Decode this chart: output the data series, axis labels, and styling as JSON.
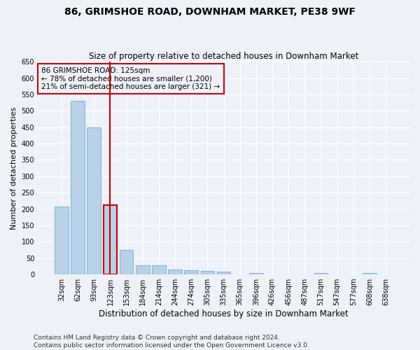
{
  "title": "86, GRIMSHOE ROAD, DOWNHAM MARKET, PE38 9WF",
  "subtitle": "Size of property relative to detached houses in Downham Market",
  "xlabel": "Distribution of detached houses by size in Downham Market",
  "ylabel": "Number of detached properties",
  "categories": [
    "32sqm",
    "62sqm",
    "93sqm",
    "123sqm",
    "153sqm",
    "184sqm",
    "214sqm",
    "244sqm",
    "274sqm",
    "305sqm",
    "335sqm",
    "365sqm",
    "396sqm",
    "426sqm",
    "456sqm",
    "487sqm",
    "517sqm",
    "547sqm",
    "577sqm",
    "608sqm",
    "638sqm"
  ],
  "values": [
    207,
    530,
    450,
    212,
    75,
    28,
    28,
    15,
    12,
    10,
    8,
    0,
    5,
    0,
    0,
    0,
    5,
    0,
    0,
    5,
    0
  ],
  "bar_color": "#b8d0e8",
  "bar_edge_color": "#7aaad0",
  "highlight_bar_index": 3,
  "highlight_bar_edge_color": "#cc0000",
  "vline_color": "#cc0000",
  "annotation_line1": "86 GRIMSHOE ROAD: 125sqm",
  "annotation_line2": "← 78% of detached houses are smaller (1,200)",
  "annotation_line3": "21% of semi-detached houses are larger (321) →",
  "annotation_box_color": "#cc0000",
  "ylim": [
    0,
    650
  ],
  "yticks": [
    0,
    50,
    100,
    150,
    200,
    250,
    300,
    350,
    400,
    450,
    500,
    550,
    600,
    650
  ],
  "footer": "Contains HM Land Registry data © Crown copyright and database right 2024.\nContains public sector information licensed under the Open Government Licence v3.0.",
  "bg_color": "#eef2f8",
  "grid_color": "#ffffff",
  "title_fontsize": 10,
  "subtitle_fontsize": 8.5,
  "tick_fontsize": 7,
  "ylabel_fontsize": 8,
  "xlabel_fontsize": 8.5,
  "annotation_fontsize": 7.5,
  "footer_fontsize": 6.5
}
